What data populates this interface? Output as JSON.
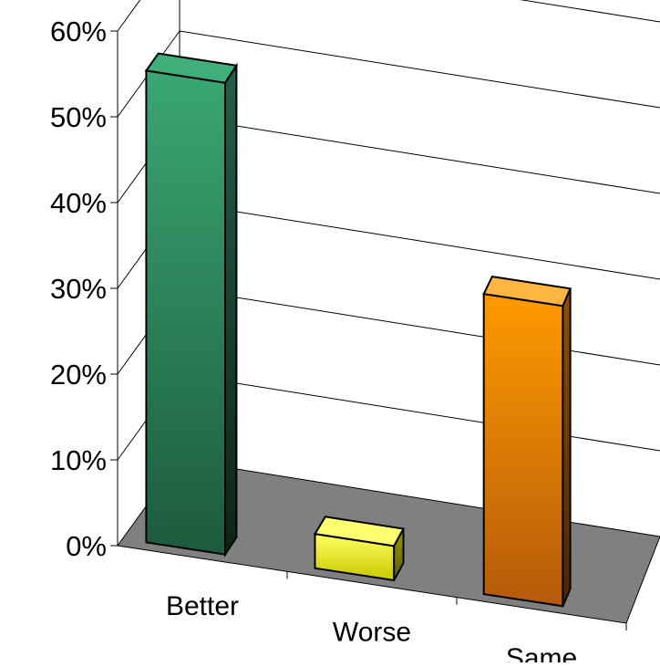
{
  "chart_data": {
    "type": "bar",
    "style": "3d-column",
    "title": "",
    "xlabel": "",
    "ylabel": "",
    "categories": [
      "Better",
      "Worse",
      "Same"
    ],
    "values": [
      0.55,
      0.04,
      0.35
    ],
    "ylim": [
      0,
      0.6
    ],
    "yticks": [
      {
        "value": 0.0,
        "label": "0%"
      },
      {
        "value": 0.1,
        "label": "10%"
      },
      {
        "value": 0.2,
        "label": "20%"
      },
      {
        "value": 0.3,
        "label": "30%"
      },
      {
        "value": 0.4,
        "label": "40%"
      },
      {
        "value": 0.5,
        "label": "50%"
      },
      {
        "value": 0.6,
        "label": "60%"
      }
    ],
    "grid": true,
    "legend": "none",
    "colors": {
      "Better": "#2e8b57",
      "Worse": "#f2f200",
      "Same": "#ff9800",
      "floor": "#808080",
      "grid": "#000000"
    }
  }
}
